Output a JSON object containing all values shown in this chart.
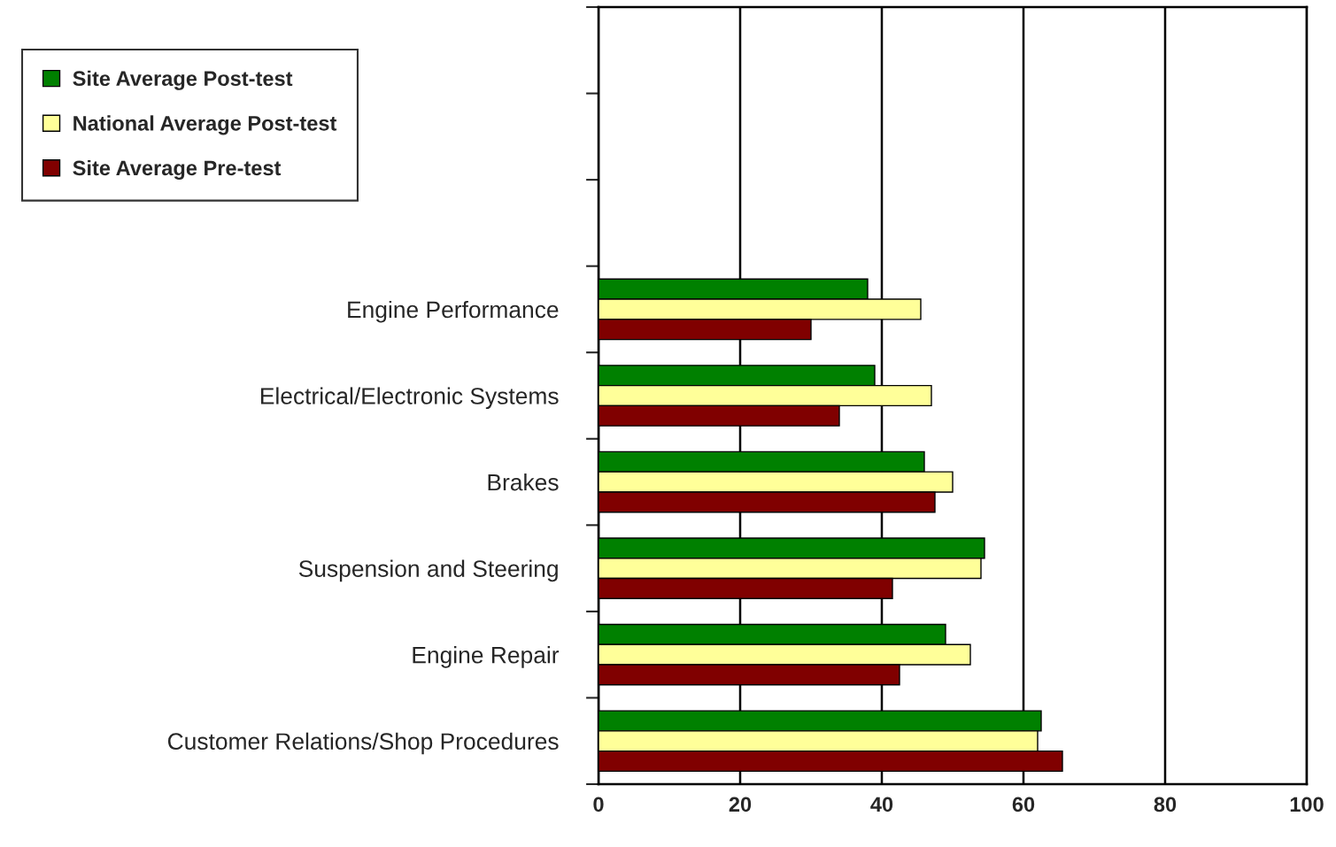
{
  "chart_data": {
    "type": "bar",
    "orientation": "horizontal",
    "categories": [
      null,
      null,
      null,
      "Engine Performance",
      "Electrical/Electronic Systems",
      "Brakes",
      "Suspension and Steering",
      "Engine Repair",
      "Customer Relations/Shop Procedures"
    ],
    "series": [
      {
        "name": "Site Average Post-test",
        "color": "#008000",
        "values": [
          null,
          null,
          null,
          38,
          39,
          46,
          54.5,
          49,
          62.5
        ]
      },
      {
        "name": "National Average Post-test",
        "color": "#ffff99",
        "values": [
          null,
          null,
          null,
          45.5,
          47,
          50,
          54,
          52.5,
          62
        ]
      },
      {
        "name": "Site Average Pre-test",
        "color": "#800000",
        "values": [
          null,
          null,
          null,
          30,
          34,
          47.5,
          41.5,
          42.5,
          65.5
        ]
      }
    ],
    "xlim": [
      0,
      100
    ],
    "xticks": [
      0,
      20,
      40,
      60,
      80,
      100
    ],
    "grid": "x",
    "legend": "top left"
  }
}
